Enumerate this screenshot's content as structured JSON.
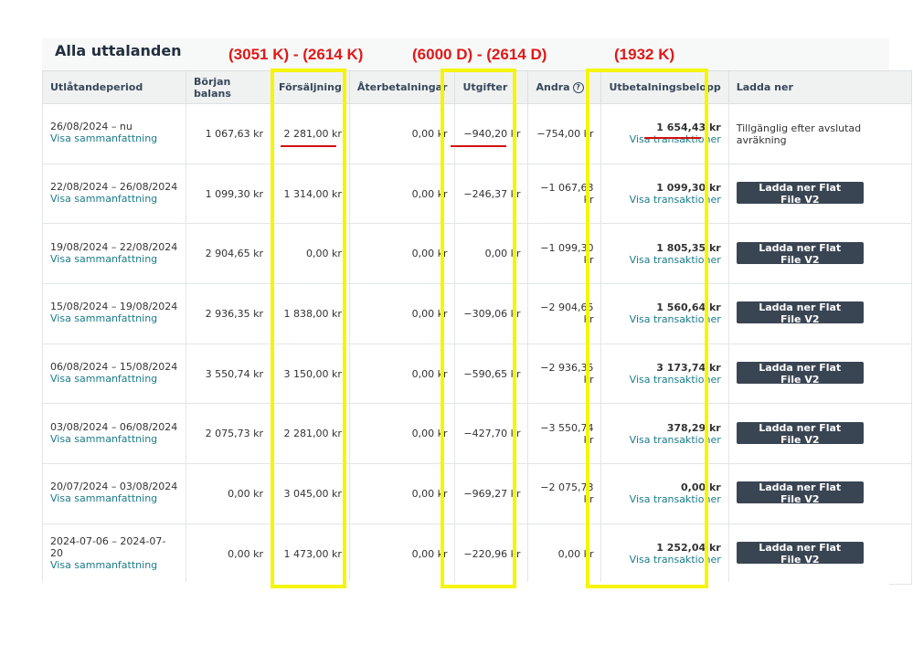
{
  "title": "Alla uttalanden",
  "annotations": {
    "sales": "(3051 K) - (2614 K)",
    "expenses": "(6000 D) - (2614 D)",
    "payout": "(1932 K)"
  },
  "columns": [
    "Utlåtandeperiod",
    "Början balans",
    "Försäljning",
    "Återbetalningar",
    "Utgifter",
    "Andra",
    "Utbetalningsbelopp",
    "Ladda ner"
  ],
  "help_icon": "?",
  "rows": [
    {
      "period": "26/08/2024 – nu",
      "summary": "Visa sammanfattning",
      "start": "1 067,63 kr",
      "sales": "2 281,00 kr",
      "refunds": "0,00 kr",
      "expenses": "−940,20 kr",
      "other": "−754,00 kr",
      "payout": "1 654,43 kr",
      "tx": "Visa transaktioner",
      "download": "Tillgänglig efter avslutad avräkning"
    },
    {
      "period": "22/08/2024 – 26/08/2024",
      "summary": "Visa sammanfattning",
      "start": "1 099,30 kr",
      "sales": "1 314,00 kr",
      "refunds": "0,00 kr",
      "expenses": "−246,37 kr",
      "other": "−1 067,63 kr",
      "payout": "1 099,30 kr",
      "tx": "Visa transaktioner",
      "download": "Ladda ner Flat File V2"
    },
    {
      "period": "19/08/2024 – 22/08/2024",
      "summary": "Visa sammanfattning",
      "start": "2 904,65 kr",
      "sales": "0,00 kr",
      "refunds": "0,00 kr",
      "expenses": "0,00 kr",
      "other": "−1 099,30 kr",
      "payout": "1 805,35 kr",
      "tx": "Visa transaktioner",
      "download": "Ladda ner Flat File V2"
    },
    {
      "period": "15/08/2024 – 19/08/2024",
      "summary": "Visa sammanfattning",
      "start": "2 936,35 kr",
      "sales": "1 838,00 kr",
      "refunds": "0,00 kr",
      "expenses": "−309,06 kr",
      "other": "−2 904,65 kr",
      "payout": "1 560,64 kr",
      "tx": "Visa transaktioner",
      "download": "Ladda ner Flat File V2"
    },
    {
      "period": "06/08/2024 – 15/08/2024",
      "summary": "Visa sammanfattning",
      "start": "3 550,74 kr",
      "sales": "3 150,00 kr",
      "refunds": "0,00 kr",
      "expenses": "−590,65 kr",
      "other": "−2 936,35 kr",
      "payout": "3 173,74 kr",
      "tx": "Visa transaktioner",
      "download": "Ladda ner Flat File V2"
    },
    {
      "period": "03/08/2024 – 06/08/2024",
      "summary": "Visa sammanfattning",
      "start": "2 075,73 kr",
      "sales": "2 281,00 kr",
      "refunds": "0,00 kr",
      "expenses": "−427,70 kr",
      "other": "−3 550,74 kr",
      "payout": "378,29 kr",
      "tx": "Visa transaktioner",
      "download": "Ladda ner Flat File V2"
    },
    {
      "period": "20/07/2024 – 03/08/2024",
      "summary": "Visa sammanfattning",
      "start": "0,00 kr",
      "sales": "3 045,00 kr",
      "refunds": "0,00 kr",
      "expenses": "−969,27 kr",
      "other": "−2 075,73 kr",
      "payout": "0,00 kr",
      "tx": "Visa transaktioner",
      "download": "Ladda ner Flat File V2"
    },
    {
      "period": "2024-07-06 – 2024-07-20",
      "summary": "Visa sammanfattning",
      "start": "0,00 kr",
      "sales": "1 473,00 kr",
      "refunds": "0,00 kr",
      "expenses": "−220,96 kr",
      "other": "0,00 kr",
      "payout": "1 252,04 kr",
      "tx": "Visa transaktioner",
      "download": "Ladda ner Flat File V2"
    }
  ]
}
